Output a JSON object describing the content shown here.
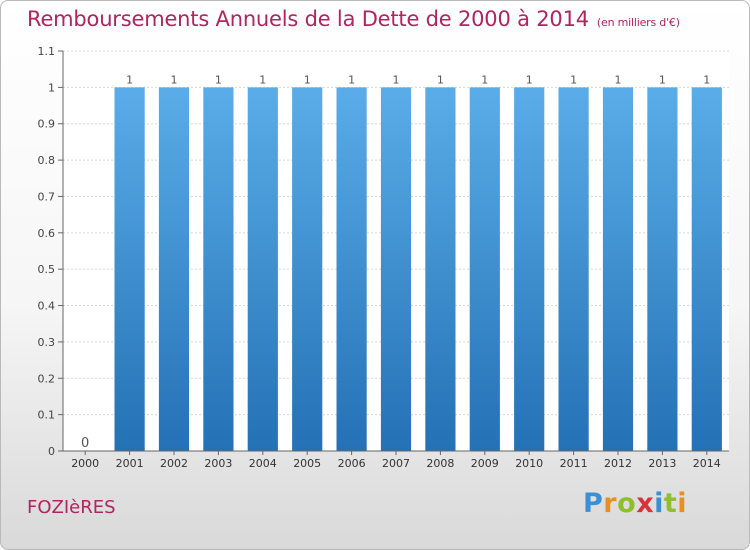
{
  "header": {
    "title": "Remboursements Annuels de la Dette de 2000 à 2014",
    "subtitle": "(en milliers d'€)"
  },
  "footer": {
    "commune": "FOZIèRES",
    "logo_letters": [
      {
        "ch": "P",
        "color": "#3a8fd6"
      },
      {
        "ch": "r",
        "color": "#e8901f"
      },
      {
        "ch": "o",
        "color": "#8fbf2a"
      },
      {
        "ch": "x",
        "color": "#d8323c"
      },
      {
        "ch": "i",
        "color": "#3a8fd6"
      },
      {
        "ch": "t",
        "color": "#8fbf2a"
      },
      {
        "ch": "i",
        "color": "#e8901f"
      }
    ]
  },
  "chart_data": {
    "type": "bar",
    "categories": [
      "2000",
      "2001",
      "2002",
      "2003",
      "2004",
      "2005",
      "2006",
      "2007",
      "2008",
      "2009",
      "2010",
      "2011",
      "2012",
      "2013",
      "2014"
    ],
    "values": [
      0,
      1,
      1,
      1,
      1,
      1,
      1,
      1,
      1,
      1,
      1,
      1,
      1,
      1,
      1
    ],
    "data_labels": [
      "0",
      "1",
      "1",
      "1",
      "1",
      "1",
      "1",
      "1",
      "1",
      "1",
      "1",
      "1",
      "1",
      "1",
      "1"
    ],
    "yticks": [
      "0",
      "0.1",
      "0.2",
      "0.3",
      "0.4",
      "0.5",
      "0.6",
      "0.7",
      "0.8",
      "0.9",
      "1",
      "1.1"
    ],
    "ytick_values": [
      0,
      0.1,
      0.2,
      0.3,
      0.4,
      0.5,
      0.6,
      0.7,
      0.8,
      0.9,
      1,
      1.1
    ],
    "ylim": [
      0,
      1.1
    ],
    "grid": true,
    "bar_color_top": "#5aade8",
    "bar_color_bottom": "#2471b5",
    "grid_color": "#d7d7d7"
  }
}
